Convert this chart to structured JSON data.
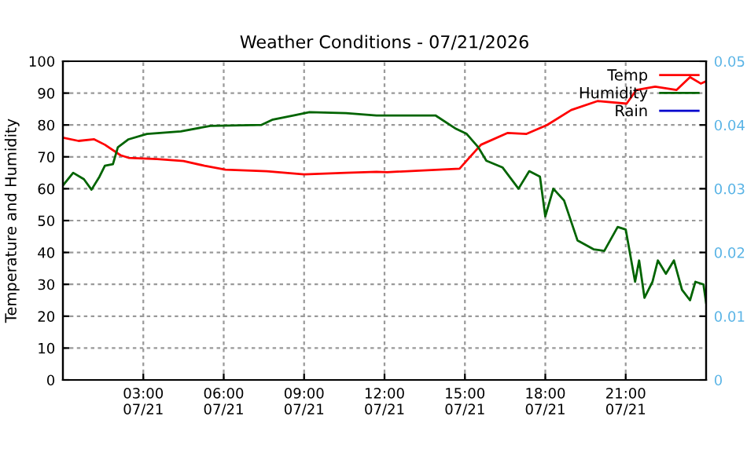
{
  "chart_data": {
    "type": "line",
    "title": "Weather Conditions - 07/21/2026",
    "ylabel": "Temperature and Humidity",
    "xlim": [
      "2026-07-21T00:00",
      "2026-07-22T00:00"
    ],
    "xticks": [
      {
        "value": "2026-07-21T03:00",
        "label": "03:00\n07/21"
      },
      {
        "value": "2026-07-21T06:00",
        "label": "06:00\n07/21"
      },
      {
        "value": "2026-07-21T09:00",
        "label": "09:00\n07/21"
      },
      {
        "value": "2026-07-21T12:00",
        "label": "12:00\n07/21"
      },
      {
        "value": "2026-07-21T15:00",
        "label": "15:00\n07/21"
      },
      {
        "value": "2026-07-21T18:00",
        "label": "18:00\n07/21"
      },
      {
        "value": "2026-07-21T21:00",
        "label": "21:00\n07/21"
      }
    ],
    "ylim": [
      0,
      100
    ],
    "yticks": [
      0,
      10,
      20,
      30,
      40,
      50,
      60,
      70,
      80,
      90,
      100
    ],
    "y2lim": [
      0,
      0.05
    ],
    "y2ticks": [
      0,
      0.01,
      0.02,
      0.03,
      0.04,
      0.05
    ],
    "grid": true,
    "legend": "top right",
    "line_style": "solid",
    "marker": "none",
    "series": [
      {
        "name": "Temp",
        "color": "#ff0000",
        "x": [
          "2026-07-21T00:00",
          "2026-07-21T00:35",
          "2026-07-21T01:10",
          "2026-07-21T01:34",
          "2026-07-21T02:09",
          "2026-07-21T02:27",
          "2026-07-21T03:31",
          "2026-07-21T04:30",
          "2026-07-21T05:17",
          "2026-07-21T06:04",
          "2026-07-21T07:36",
          "2026-07-21T09:00",
          "2026-07-21T10:34",
          "2026-07-21T11:42",
          "2026-07-21T12:06",
          "2026-07-21T14:48",
          "2026-07-21T15:04",
          "2026-07-21T15:36",
          "2026-07-21T16:36",
          "2026-07-21T17:18",
          "2026-07-21T18:04",
          "2026-07-21T18:58",
          "2026-07-21T19:57",
          "2026-07-21T21:02",
          "2026-07-21T21:24",
          "2026-07-21T22:06",
          "2026-07-21T22:54",
          "2026-07-21T23:24",
          "2026-07-21T23:48",
          "2026-07-22T00:00"
        ],
        "values": [
          76,
          75,
          75.5,
          73.8,
          70.5,
          69.7,
          69.3,
          68.7,
          67.2,
          66,
          65.5,
          64.5,
          65,
          65.3,
          65.2,
          66.3,
          68.8,
          73.8,
          77.5,
          77.2,
          80,
          84.7,
          87.5,
          86.7,
          91,
          92,
          91,
          95,
          93,
          93.7
        ]
      },
      {
        "name": "Humidity",
        "color": "#006400",
        "x": [
          "2026-07-21T00:00",
          "2026-07-21T00:23",
          "2026-07-21T00:47",
          "2026-07-21T01:04",
          "2026-07-21T01:22",
          "2026-07-21T01:34",
          "2026-07-21T01:52",
          "2026-07-21T02:03",
          "2026-07-21T02:27",
          "2026-07-21T03:08",
          "2026-07-21T04:24",
          "2026-07-21T05:30",
          "2026-07-21T07:24",
          "2026-07-21T07:50",
          "2026-07-21T08:36",
          "2026-07-21T09:12",
          "2026-07-21T10:34",
          "2026-07-21T11:42",
          "2026-07-21T12:06",
          "2026-07-21T13:54",
          "2026-07-21T14:40",
          "2026-07-21T15:04",
          "2026-07-21T15:30",
          "2026-07-21T15:48",
          "2026-07-21T16:24",
          "2026-07-21T17:00",
          "2026-07-21T17:24",
          "2026-07-21T17:48",
          "2026-07-21T18:00",
          "2026-07-21T18:18",
          "2026-07-21T18:42",
          "2026-07-21T19:12",
          "2026-07-21T19:48",
          "2026-07-21T20:12",
          "2026-07-21T20:42",
          "2026-07-21T21:00",
          "2026-07-21T21:21",
          "2026-07-21T21:30",
          "2026-07-21T21:42",
          "2026-07-21T22:00",
          "2026-07-21T22:12",
          "2026-07-21T22:30",
          "2026-07-21T22:48",
          "2026-07-21T23:06",
          "2026-07-21T23:24",
          "2026-07-21T23:36",
          "2026-07-21T23:54",
          "2026-07-22T00:00"
        ],
        "values": [
          61,
          65,
          63,
          59.7,
          63.8,
          67.2,
          67.7,
          73,
          75.5,
          77.2,
          78,
          79.7,
          80,
          81.7,
          83,
          84,
          83.7,
          83,
          83,
          83,
          78.8,
          77.2,
          73,
          68.8,
          66.7,
          60,
          65.5,
          63.8,
          51.3,
          60,
          56.3,
          43.8,
          41,
          40.5,
          48,
          47.2,
          30.8,
          37.5,
          25.8,
          30.8,
          37.5,
          33.3,
          37.5,
          28.3,
          25,
          30.8,
          30,
          24.2
        ]
      },
      {
        "name": "Rain",
        "color": "#0000cd"
      }
    ]
  }
}
